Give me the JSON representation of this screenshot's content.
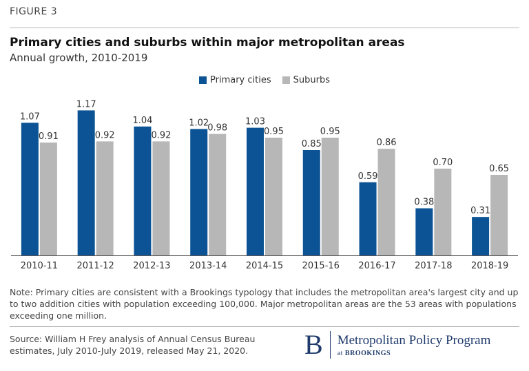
{
  "figure_label": "FIGURE 3",
  "note": "Note: Primary cities are consistent with a Brookings typology that includes the metropolitan area's largest city and up to two addition cities with population exceeding 100,000.   Major metropolitan areas are the 53 areas with populations exceeding one million.",
  "source": "Source: William H Frey analysis of Annual Census Bureau estimates, July 2010-July 2019, released May 21, 2020.",
  "logo": {
    "initial": "B",
    "name": "Metropolitan Policy Program",
    "sub_prefix": "at",
    "sub_brand": "BROOKINGS"
  },
  "colors": {
    "primary": "#0b5394",
    "suburbs": "#b7b7b7",
    "axis": "#555555"
  },
  "chart_data": {
    "type": "bar",
    "title": "Primary cities and suburbs within major metropolitan areas",
    "subtitle": "Annual growth, 2010-2019",
    "categories": [
      "2010-11",
      "2011-12",
      "2012-13",
      "2013-14",
      "2014-15",
      "2015-16",
      "2016-17",
      "2017-18",
      "2018-19"
    ],
    "series": [
      {
        "name": "Primary cities",
        "values": [
          1.07,
          1.17,
          1.04,
          1.02,
          1.03,
          0.85,
          0.59,
          0.38,
          0.31
        ]
      },
      {
        "name": "Suburbs",
        "values": [
          0.91,
          0.92,
          0.92,
          0.98,
          0.95,
          0.95,
          0.86,
          0.7,
          0.65
        ]
      }
    ],
    "value_labels": [
      [
        "1.07",
        "1.17",
        "1.04",
        "1.02",
        "1.03",
        "0.85",
        "0.59",
        "0.38",
        "0.31"
      ],
      [
        "0.91",
        "0.92",
        "0.92",
        "0.98",
        "0.95",
        "0.95",
        "0.86",
        "0.70",
        "0.65"
      ]
    ],
    "ylim": [
      0,
      1.2
    ],
    "grid": false,
    "legend_position": "top-center"
  }
}
